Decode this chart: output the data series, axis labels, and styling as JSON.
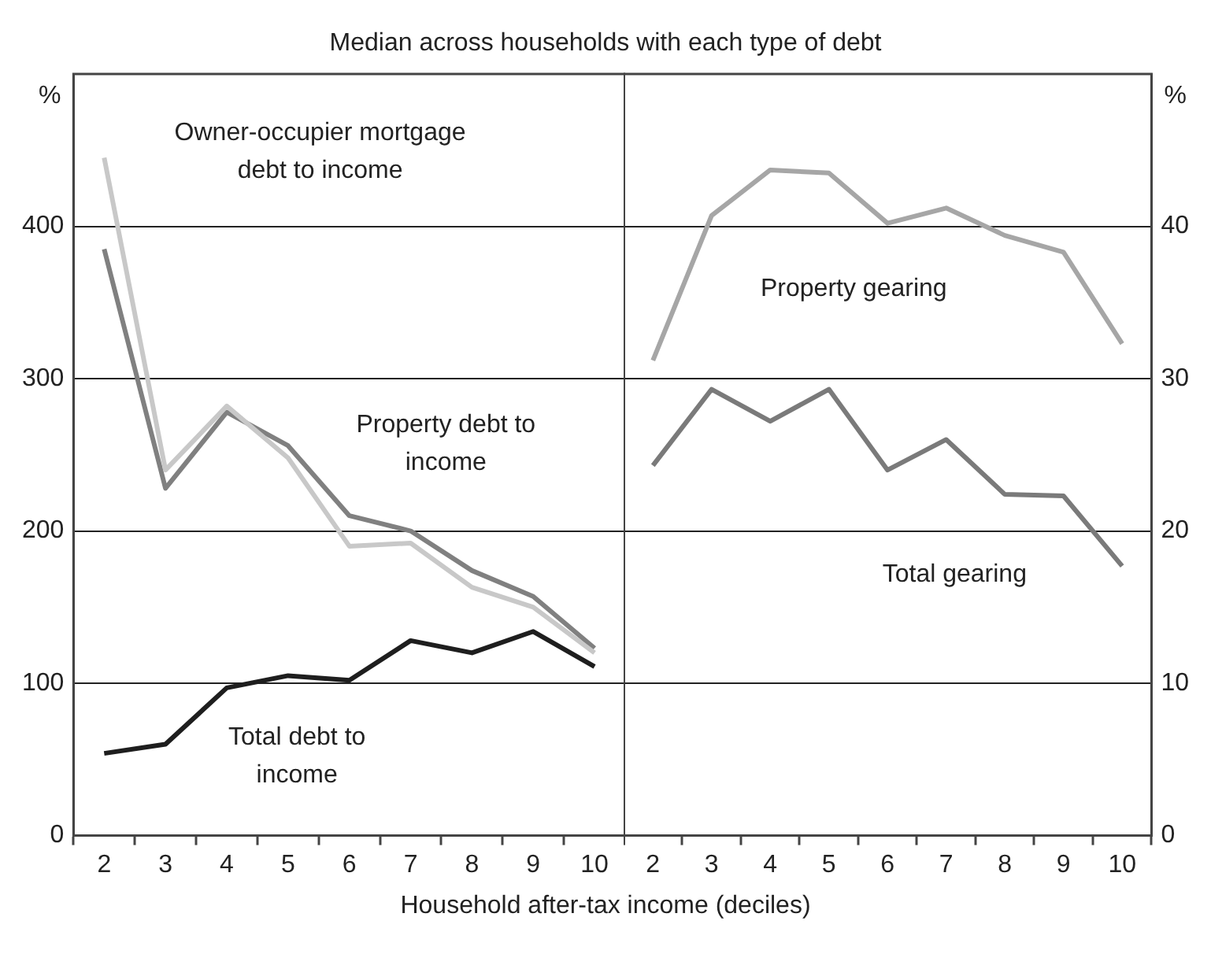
{
  "chart_data": [
    {
      "type": "line",
      "title": "Median across households with each type of debt",
      "xlabel": "Household after-tax income (deciles)",
      "ylabel": "%",
      "categories": [
        "2",
        "3",
        "4",
        "5",
        "6",
        "7",
        "8",
        "9",
        "10"
      ],
      "series": [
        {
          "name": "Owner-occupier mortgage debt to income",
          "color": "#c8c8c8",
          "values": [
            445,
            240,
            282,
            248,
            190,
            192,
            163,
            150,
            120
          ]
        },
        {
          "name": "Property debt to income",
          "color": "#808080",
          "values": [
            385,
            228,
            278,
            256,
            210,
            200,
            174,
            157,
            123
          ]
        },
        {
          "name": "Total debt to income",
          "color": "#1e1e1e",
          "values": [
            54,
            60,
            97,
            105,
            102,
            128,
            120,
            134,
            111
          ]
        }
      ],
      "ylim": [
        0,
        500
      ],
      "yticks": [
        0,
        100,
        200,
        300,
        400
      ],
      "grid": "y",
      "legend": false,
      "marker": "none"
    },
    {
      "type": "line",
      "y2label": "%",
      "categories": [
        "2",
        "3",
        "4",
        "5",
        "6",
        "7",
        "8",
        "9",
        "10"
      ],
      "series": [
        {
          "name": "Property gearing",
          "color": "#a6a6a6",
          "axis": "y2",
          "values": [
            31.2,
            40.7,
            43.7,
            43.5,
            40.2,
            41.2,
            39.4,
            38.3,
            32.3
          ]
        },
        {
          "name": "Total gearing",
          "color": "#7a7a7a",
          "axis": "y2",
          "values": [
            24.3,
            29.3,
            27.2,
            29.3,
            24.0,
            26.0,
            22.4,
            22.3,
            17.7
          ]
        }
      ],
      "y2lim": [
        0,
        50
      ],
      "y2ticks": [
        0,
        10,
        20,
        30,
        40
      ],
      "grid": "y",
      "legend": false,
      "marker": "none"
    }
  ]
}
